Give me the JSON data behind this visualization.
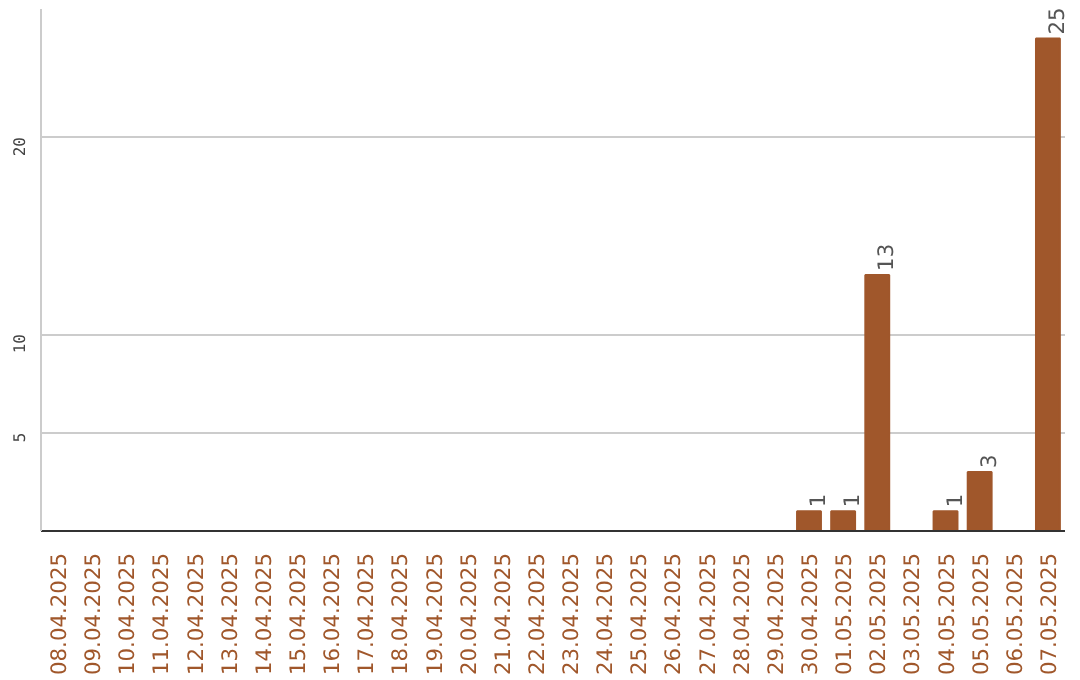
{
  "chart_data": {
    "type": "bar",
    "categories": [
      "08.04.2025",
      "09.04.2025",
      "10.04.2025",
      "11.04.2025",
      "12.04.2025",
      "13.04.2025",
      "14.04.2025",
      "15.04.2025",
      "16.04.2025",
      "17.04.2025",
      "18.04.2025",
      "19.04.2025",
      "20.04.2025",
      "21.04.2025",
      "22.04.2025",
      "23.04.2025",
      "24.04.2025",
      "25.04.2025",
      "26.04.2025",
      "27.04.2025",
      "28.04.2025",
      "29.04.2025",
      "30.04.2025",
      "01.05.2025",
      "02.05.2025",
      "03.05.2025",
      "04.05.2025",
      "05.05.2025",
      "06.05.2025",
      "07.05.2025"
    ],
    "values": [
      0,
      0,
      0,
      0,
      0,
      0,
      0,
      0,
      0,
      0,
      0,
      0,
      0,
      0,
      0,
      0,
      0,
      0,
      0,
      0,
      0,
      0,
      1,
      1,
      13,
      0,
      1,
      3,
      0,
      25
    ],
    "value_labels": [
      null,
      null,
      null,
      null,
      null,
      null,
      null,
      null,
      null,
      null,
      null,
      null,
      null,
      null,
      null,
      null,
      null,
      null,
      null,
      null,
      null,
      null,
      "1",
      "1",
      "13",
      null,
      "1",
      "3",
      null,
      "25"
    ],
    "color": "#a0572b",
    "ylim": [
      0,
      26.5
    ],
    "yticks": [
      5,
      10,
      20
    ],
    "grid": "y"
  }
}
